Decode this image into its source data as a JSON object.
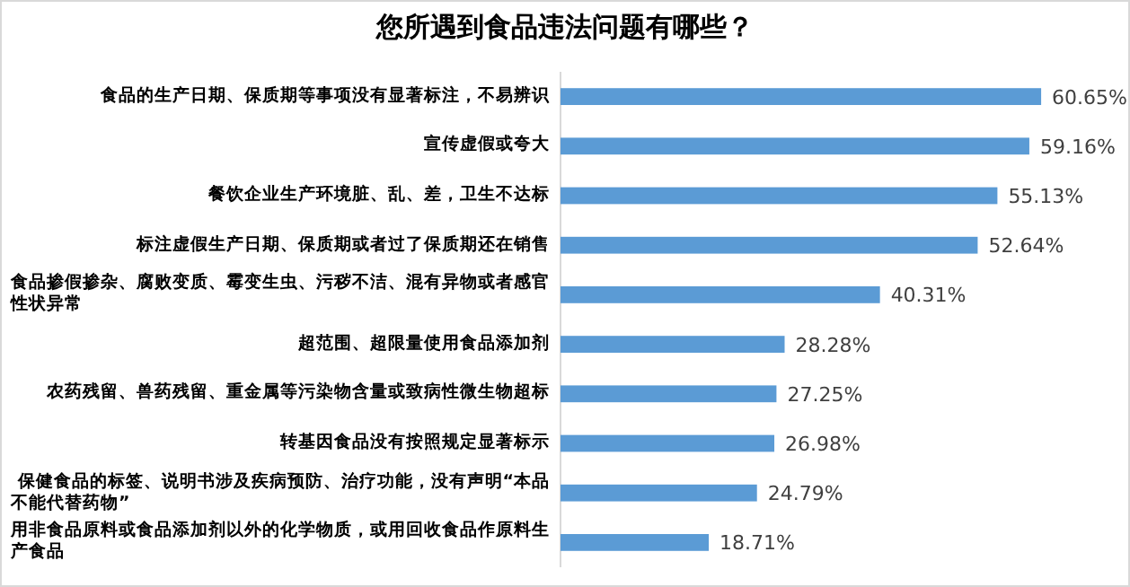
{
  "chart_data": {
    "type": "bar",
    "orientation": "horizontal",
    "title": "您所遇到食品违法问题有哪些？",
    "categories": [
      "食品的生产日期、保质期等事项没有显著标注，不易辨识",
      "宣传虚假或夸大",
      "餐饮企业生产环境脏、乱、差，卫生不达标",
      "标注虚假生产日期、保质期或者过了保质期还在销售",
      "食品掺假掺杂、腐败变质、霉变生虫、污秽不洁、混有异物或者感官性状异常",
      "超范围、超限量使用食品添加剂",
      "农药残留、兽药残留、重金属等污染物含量或致病性微生物超标",
      "转基因食品没有按照规定显著标示",
      "保健食品的标签、说明书涉及疾病预防、治疗功能，没有声明“本品不能代替药物”",
      "用非食品原料或食品添加剂以外的化学物质，或用回收食品作原料生产食品"
    ],
    "values": [
      60.65,
      59.16,
      55.13,
      52.64,
      40.31,
      28.28,
      27.25,
      26.98,
      24.79,
      18.71
    ],
    "value_labels": [
      "60.65%",
      "59.16%",
      "55.13%",
      "52.64%",
      "40.31%",
      "28.28%",
      "27.25%",
      "26.98%",
      "24.79%",
      "18.71%"
    ],
    "color": "#5b9bd5"
  }
}
